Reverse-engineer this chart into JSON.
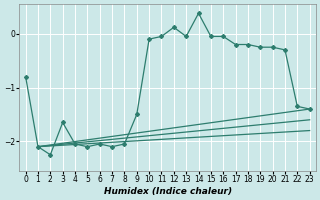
{
  "xlabel": "Humidex (Indice chaleur)",
  "bg_color": "#cce8e8",
  "grid_color": "#ffffff",
  "line_color": "#2d7d6e",
  "x_values": [
    0,
    1,
    2,
    3,
    4,
    5,
    6,
    7,
    8,
    9,
    10,
    11,
    12,
    13,
    14,
    15,
    16,
    17,
    18,
    19,
    20,
    21,
    22,
    23
  ],
  "main_y": [
    -0.8,
    -2.1,
    -2.25,
    -1.65,
    -2.05,
    -2.1,
    -2.05,
    -2.1,
    -2.05,
    -1.5,
    -0.1,
    -0.05,
    0.12,
    -0.05,
    0.38,
    -0.05,
    -0.05,
    -0.2,
    -0.2,
    -0.25,
    -0.25,
    -0.3,
    -1.35,
    -1.4
  ],
  "reg_lines": [
    {
      "x0": 1,
      "y0": -2.1,
      "x1": 23,
      "y1": -1.4
    },
    {
      "x0": 1,
      "y0": -2.1,
      "x1": 23,
      "y1": -1.6
    },
    {
      "x0": 1,
      "y0": -2.1,
      "x1": 23,
      "y1": -1.8
    }
  ],
  "xlim": [
    -0.5,
    23.5
  ],
  "ylim": [
    -2.55,
    0.55
  ],
  "yticks": [
    0,
    -1,
    -2
  ],
  "xticks": [
    0,
    1,
    2,
    3,
    4,
    5,
    6,
    7,
    8,
    9,
    10,
    11,
    12,
    13,
    14,
    15,
    16,
    17,
    18,
    19,
    20,
    21,
    22,
    23
  ]
}
